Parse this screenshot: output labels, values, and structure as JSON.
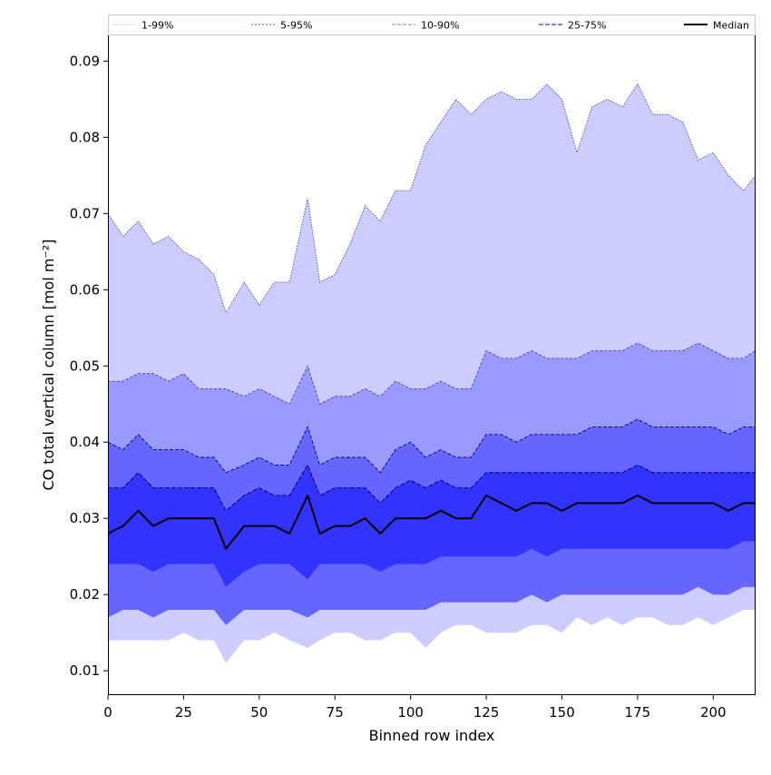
{
  "chart_data": {
    "type": "area",
    "xlabel": "Binned row index",
    "ylabel": "CO total vertical column [mol m⁻²]",
    "xlim": [
      0,
      214
    ],
    "ylim": [
      0.0068,
      0.0935
    ],
    "xticks": [
      0,
      25,
      50,
      75,
      100,
      125,
      150,
      175,
      200
    ],
    "xtick_labels": [
      "0",
      "25",
      "50",
      "75",
      "100",
      "125",
      "150",
      "175",
      "200"
    ],
    "yticks": [
      0.01,
      0.02,
      0.03,
      0.04,
      0.05,
      0.06,
      0.07,
      0.08,
      0.09
    ],
    "ytick_labels": [
      "0.01",
      "0.02",
      "0.03",
      "0.04",
      "0.05",
      "0.06",
      "0.07",
      "0.08",
      "0.09"
    ],
    "legend": {
      "position": "top",
      "entries": [
        "1-99%",
        "5-95%",
        "10-90%",
        "25-75%",
        "Median"
      ]
    },
    "colors": {
      "band_outer": "#ccccff",
      "band_5_95": "#9999ff",
      "band_10_90": "#6666ff",
      "band_25_75": "#3333ff",
      "line_1_99": "#d0d0f4",
      "line_5_95": "#3333aa",
      "line_10_90": "#2222cc",
      "line_25_75": "#00007a",
      "median": "#000000"
    },
    "series": [
      {
        "name": "1-99%",
        "x": [
          0,
          5,
          10,
          15,
          20,
          25,
          30,
          35,
          39,
          45,
          50,
          55,
          60,
          66,
          70,
          75,
          80,
          85,
          90,
          95,
          100,
          105,
          110,
          115,
          120,
          125,
          130,
          135,
          140,
          145,
          150,
          155,
          160,
          165,
          170,
          175,
          180,
          185,
          190,
          195,
          200,
          205,
          210,
          214
        ],
        "upper": [
          0.07,
          0.067,
          0.069,
          0.066,
          0.067,
          0.065,
          0.064,
          0.062,
          0.057,
          0.061,
          0.058,
          0.061,
          0.061,
          0.072,
          0.061,
          0.062,
          0.066,
          0.071,
          0.069,
          0.073,
          0.073,
          0.079,
          0.082,
          0.085,
          0.083,
          0.085,
          0.086,
          0.085,
          0.085,
          0.087,
          0.085,
          0.078,
          0.084,
          0.085,
          0.084,
          0.087,
          0.083,
          0.083,
          0.082,
          0.077,
          0.078,
          0.075,
          0.073,
          0.075
        ],
        "lower": [
          0.014,
          0.014,
          0.014,
          0.014,
          0.014,
          0.015,
          0.014,
          0.014,
          0.011,
          0.014,
          0.014,
          0.015,
          0.014,
          0.013,
          0.014,
          0.015,
          0.015,
          0.014,
          0.014,
          0.015,
          0.015,
          0.013,
          0.015,
          0.016,
          0.016,
          0.015,
          0.015,
          0.015,
          0.016,
          0.016,
          0.015,
          0.017,
          0.016,
          0.017,
          0.016,
          0.017,
          0.017,
          0.016,
          0.016,
          0.017,
          0.016,
          0.017,
          0.018,
          0.018
        ]
      },
      {
        "name": "5-95%",
        "x": [
          0,
          5,
          10,
          15,
          20,
          25,
          30,
          35,
          39,
          45,
          50,
          55,
          60,
          66,
          70,
          75,
          80,
          85,
          90,
          95,
          100,
          105,
          110,
          115,
          120,
          125,
          130,
          135,
          140,
          145,
          150,
          155,
          160,
          165,
          170,
          175,
          180,
          185,
          190,
          195,
          200,
          205,
          210,
          214
        ],
        "upper": [
          0.048,
          0.048,
          0.049,
          0.049,
          0.048,
          0.049,
          0.047,
          0.047,
          0.047,
          0.046,
          0.047,
          0.046,
          0.045,
          0.05,
          0.045,
          0.046,
          0.046,
          0.047,
          0.046,
          0.048,
          0.047,
          0.047,
          0.048,
          0.047,
          0.047,
          0.052,
          0.051,
          0.051,
          0.052,
          0.051,
          0.051,
          0.051,
          0.052,
          0.052,
          0.052,
          0.053,
          0.052,
          0.052,
          0.052,
          0.053,
          0.052,
          0.051,
          0.051,
          0.052
        ]
      },
      {
        "name": "10-90%",
        "x": [
          0,
          5,
          10,
          15,
          20,
          25,
          30,
          35,
          39,
          45,
          50,
          55,
          60,
          66,
          70,
          75,
          80,
          85,
          90,
          95,
          100,
          105,
          110,
          115,
          120,
          125,
          130,
          135,
          140,
          145,
          150,
          155,
          160,
          165,
          170,
          175,
          180,
          185,
          190,
          195,
          200,
          205,
          210,
          214
        ],
        "upper": [
          0.04,
          0.039,
          0.041,
          0.039,
          0.039,
          0.039,
          0.038,
          0.038,
          0.036,
          0.037,
          0.038,
          0.037,
          0.037,
          0.042,
          0.037,
          0.038,
          0.038,
          0.038,
          0.036,
          0.039,
          0.04,
          0.038,
          0.039,
          0.038,
          0.038,
          0.041,
          0.041,
          0.04,
          0.041,
          0.041,
          0.041,
          0.041,
          0.042,
          0.042,
          0.042,
          0.043,
          0.042,
          0.042,
          0.042,
          0.042,
          0.042,
          0.041,
          0.042,
          0.042
        ],
        "lower": [
          0.017,
          0.018,
          0.018,
          0.017,
          0.018,
          0.018,
          0.018,
          0.018,
          0.016,
          0.018,
          0.018,
          0.018,
          0.018,
          0.017,
          0.018,
          0.018,
          0.018,
          0.018,
          0.018,
          0.018,
          0.018,
          0.018,
          0.019,
          0.019,
          0.019,
          0.019,
          0.019,
          0.019,
          0.02,
          0.019,
          0.02,
          0.02,
          0.02,
          0.02,
          0.02,
          0.02,
          0.02,
          0.02,
          0.02,
          0.021,
          0.02,
          0.02,
          0.021,
          0.021
        ]
      },
      {
        "name": "25-75%",
        "x": [
          0,
          5,
          10,
          15,
          20,
          25,
          30,
          35,
          39,
          45,
          50,
          55,
          60,
          66,
          70,
          75,
          80,
          85,
          90,
          95,
          100,
          105,
          110,
          115,
          120,
          125,
          130,
          135,
          140,
          145,
          150,
          155,
          160,
          165,
          170,
          175,
          180,
          185,
          190,
          195,
          200,
          205,
          210,
          214
        ],
        "upper": [
          0.034,
          0.034,
          0.036,
          0.034,
          0.034,
          0.034,
          0.034,
          0.034,
          0.031,
          0.033,
          0.034,
          0.033,
          0.033,
          0.037,
          0.033,
          0.034,
          0.034,
          0.034,
          0.032,
          0.034,
          0.035,
          0.034,
          0.035,
          0.034,
          0.034,
          0.036,
          0.036,
          0.036,
          0.036,
          0.036,
          0.036,
          0.036,
          0.036,
          0.036,
          0.036,
          0.037,
          0.036,
          0.036,
          0.036,
          0.036,
          0.036,
          0.036,
          0.036,
          0.036
        ],
        "lower": [
          0.024,
          0.024,
          0.024,
          0.023,
          0.024,
          0.024,
          0.024,
          0.024,
          0.021,
          0.023,
          0.024,
          0.024,
          0.024,
          0.022,
          0.024,
          0.024,
          0.024,
          0.024,
          0.023,
          0.024,
          0.024,
          0.024,
          0.025,
          0.025,
          0.025,
          0.025,
          0.025,
          0.025,
          0.026,
          0.025,
          0.026,
          0.026,
          0.026,
          0.026,
          0.026,
          0.026,
          0.026,
          0.026,
          0.026,
          0.026,
          0.026,
          0.026,
          0.027,
          0.027
        ]
      },
      {
        "name": "Median",
        "x": [
          0,
          5,
          10,
          15,
          20,
          25,
          30,
          35,
          39,
          45,
          50,
          55,
          60,
          66,
          70,
          75,
          80,
          85,
          90,
          95,
          100,
          105,
          110,
          115,
          120,
          125,
          130,
          135,
          140,
          145,
          150,
          155,
          160,
          165,
          170,
          175,
          180,
          185,
          190,
          195,
          200,
          205,
          210,
          214
        ],
        "values": [
          0.028,
          0.029,
          0.031,
          0.029,
          0.03,
          0.03,
          0.03,
          0.03,
          0.026,
          0.029,
          0.029,
          0.029,
          0.028,
          0.033,
          0.028,
          0.029,
          0.029,
          0.03,
          0.028,
          0.03,
          0.03,
          0.03,
          0.031,
          0.03,
          0.03,
          0.033,
          0.032,
          0.031,
          0.032,
          0.032,
          0.031,
          0.032,
          0.032,
          0.032,
          0.032,
          0.033,
          0.032,
          0.032,
          0.032,
          0.032,
          0.032,
          0.031,
          0.032,
          0.032
        ]
      }
    ]
  }
}
